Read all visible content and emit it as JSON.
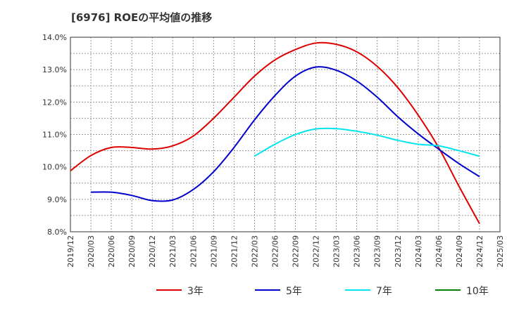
{
  "chart_data": {
    "type": "line",
    "title": "[6976]  ROEの平均値の推移",
    "x_categories": [
      "2019/12",
      "2020/03",
      "2020/06",
      "2020/09",
      "2020/12",
      "2021/03",
      "2021/06",
      "2021/09",
      "2021/12",
      "2022/03",
      "2022/06",
      "2022/09",
      "2022/12",
      "2023/03",
      "2023/06",
      "2023/09",
      "2023/12",
      "2024/03",
      "2024/06",
      "2024/09",
      "2024/12",
      "2025/03"
    ],
    "y_ticks": [
      "8.0%",
      "9.0%",
      "10.0%",
      "11.0%",
      "12.0%",
      "13.0%",
      "14.0%"
    ],
    "ylim": [
      8.0,
      14.0
    ],
    "grid": true,
    "legend_position": "bottom",
    "series": [
      {
        "name": "3年",
        "color": "#dd0000",
        "x": [
          "2019/12",
          "2020/03",
          "2020/06",
          "2020/09",
          "2020/12",
          "2021/03",
          "2021/06",
          "2021/09",
          "2021/12",
          "2022/03",
          "2022/06",
          "2022/09",
          "2022/12",
          "2023/03",
          "2023/06",
          "2023/09",
          "2023/12",
          "2024/03",
          "2024/06",
          "2024/09",
          "2024/12"
        ],
        "values": [
          9.88,
          10.35,
          10.6,
          10.6,
          10.55,
          10.65,
          10.95,
          11.5,
          12.15,
          12.8,
          13.3,
          13.62,
          13.82,
          13.78,
          13.55,
          13.1,
          12.45,
          11.6,
          10.6,
          9.4,
          8.25
        ]
      },
      {
        "name": "5年",
        "color": "#0000cc",
        "x": [
          "2020/03",
          "2020/06",
          "2020/09",
          "2020/12",
          "2021/03",
          "2021/06",
          "2021/09",
          "2021/12",
          "2022/03",
          "2022/06",
          "2022/09",
          "2022/12",
          "2023/03",
          "2023/06",
          "2023/09",
          "2023/12",
          "2024/03",
          "2024/06",
          "2024/09",
          "2024/12"
        ],
        "values": [
          9.22,
          9.22,
          9.12,
          8.96,
          8.98,
          9.3,
          9.85,
          10.6,
          11.45,
          12.2,
          12.8,
          13.08,
          12.98,
          12.65,
          12.15,
          11.55,
          11.02,
          10.55,
          10.1,
          9.7
        ]
      },
      {
        "name": "7年",
        "color": "#00e5ee",
        "x": [
          "2022/03",
          "2022/06",
          "2022/09",
          "2022/12",
          "2023/03",
          "2023/06",
          "2023/09",
          "2023/12",
          "2024/03",
          "2024/06",
          "2024/09",
          "2024/12"
        ],
        "values": [
          10.33,
          10.7,
          11.0,
          11.17,
          11.18,
          11.1,
          10.98,
          10.82,
          10.7,
          10.65,
          10.5,
          10.33
        ]
      },
      {
        "name": "10年",
        "color": "#008000",
        "x": [],
        "values": []
      }
    ]
  }
}
